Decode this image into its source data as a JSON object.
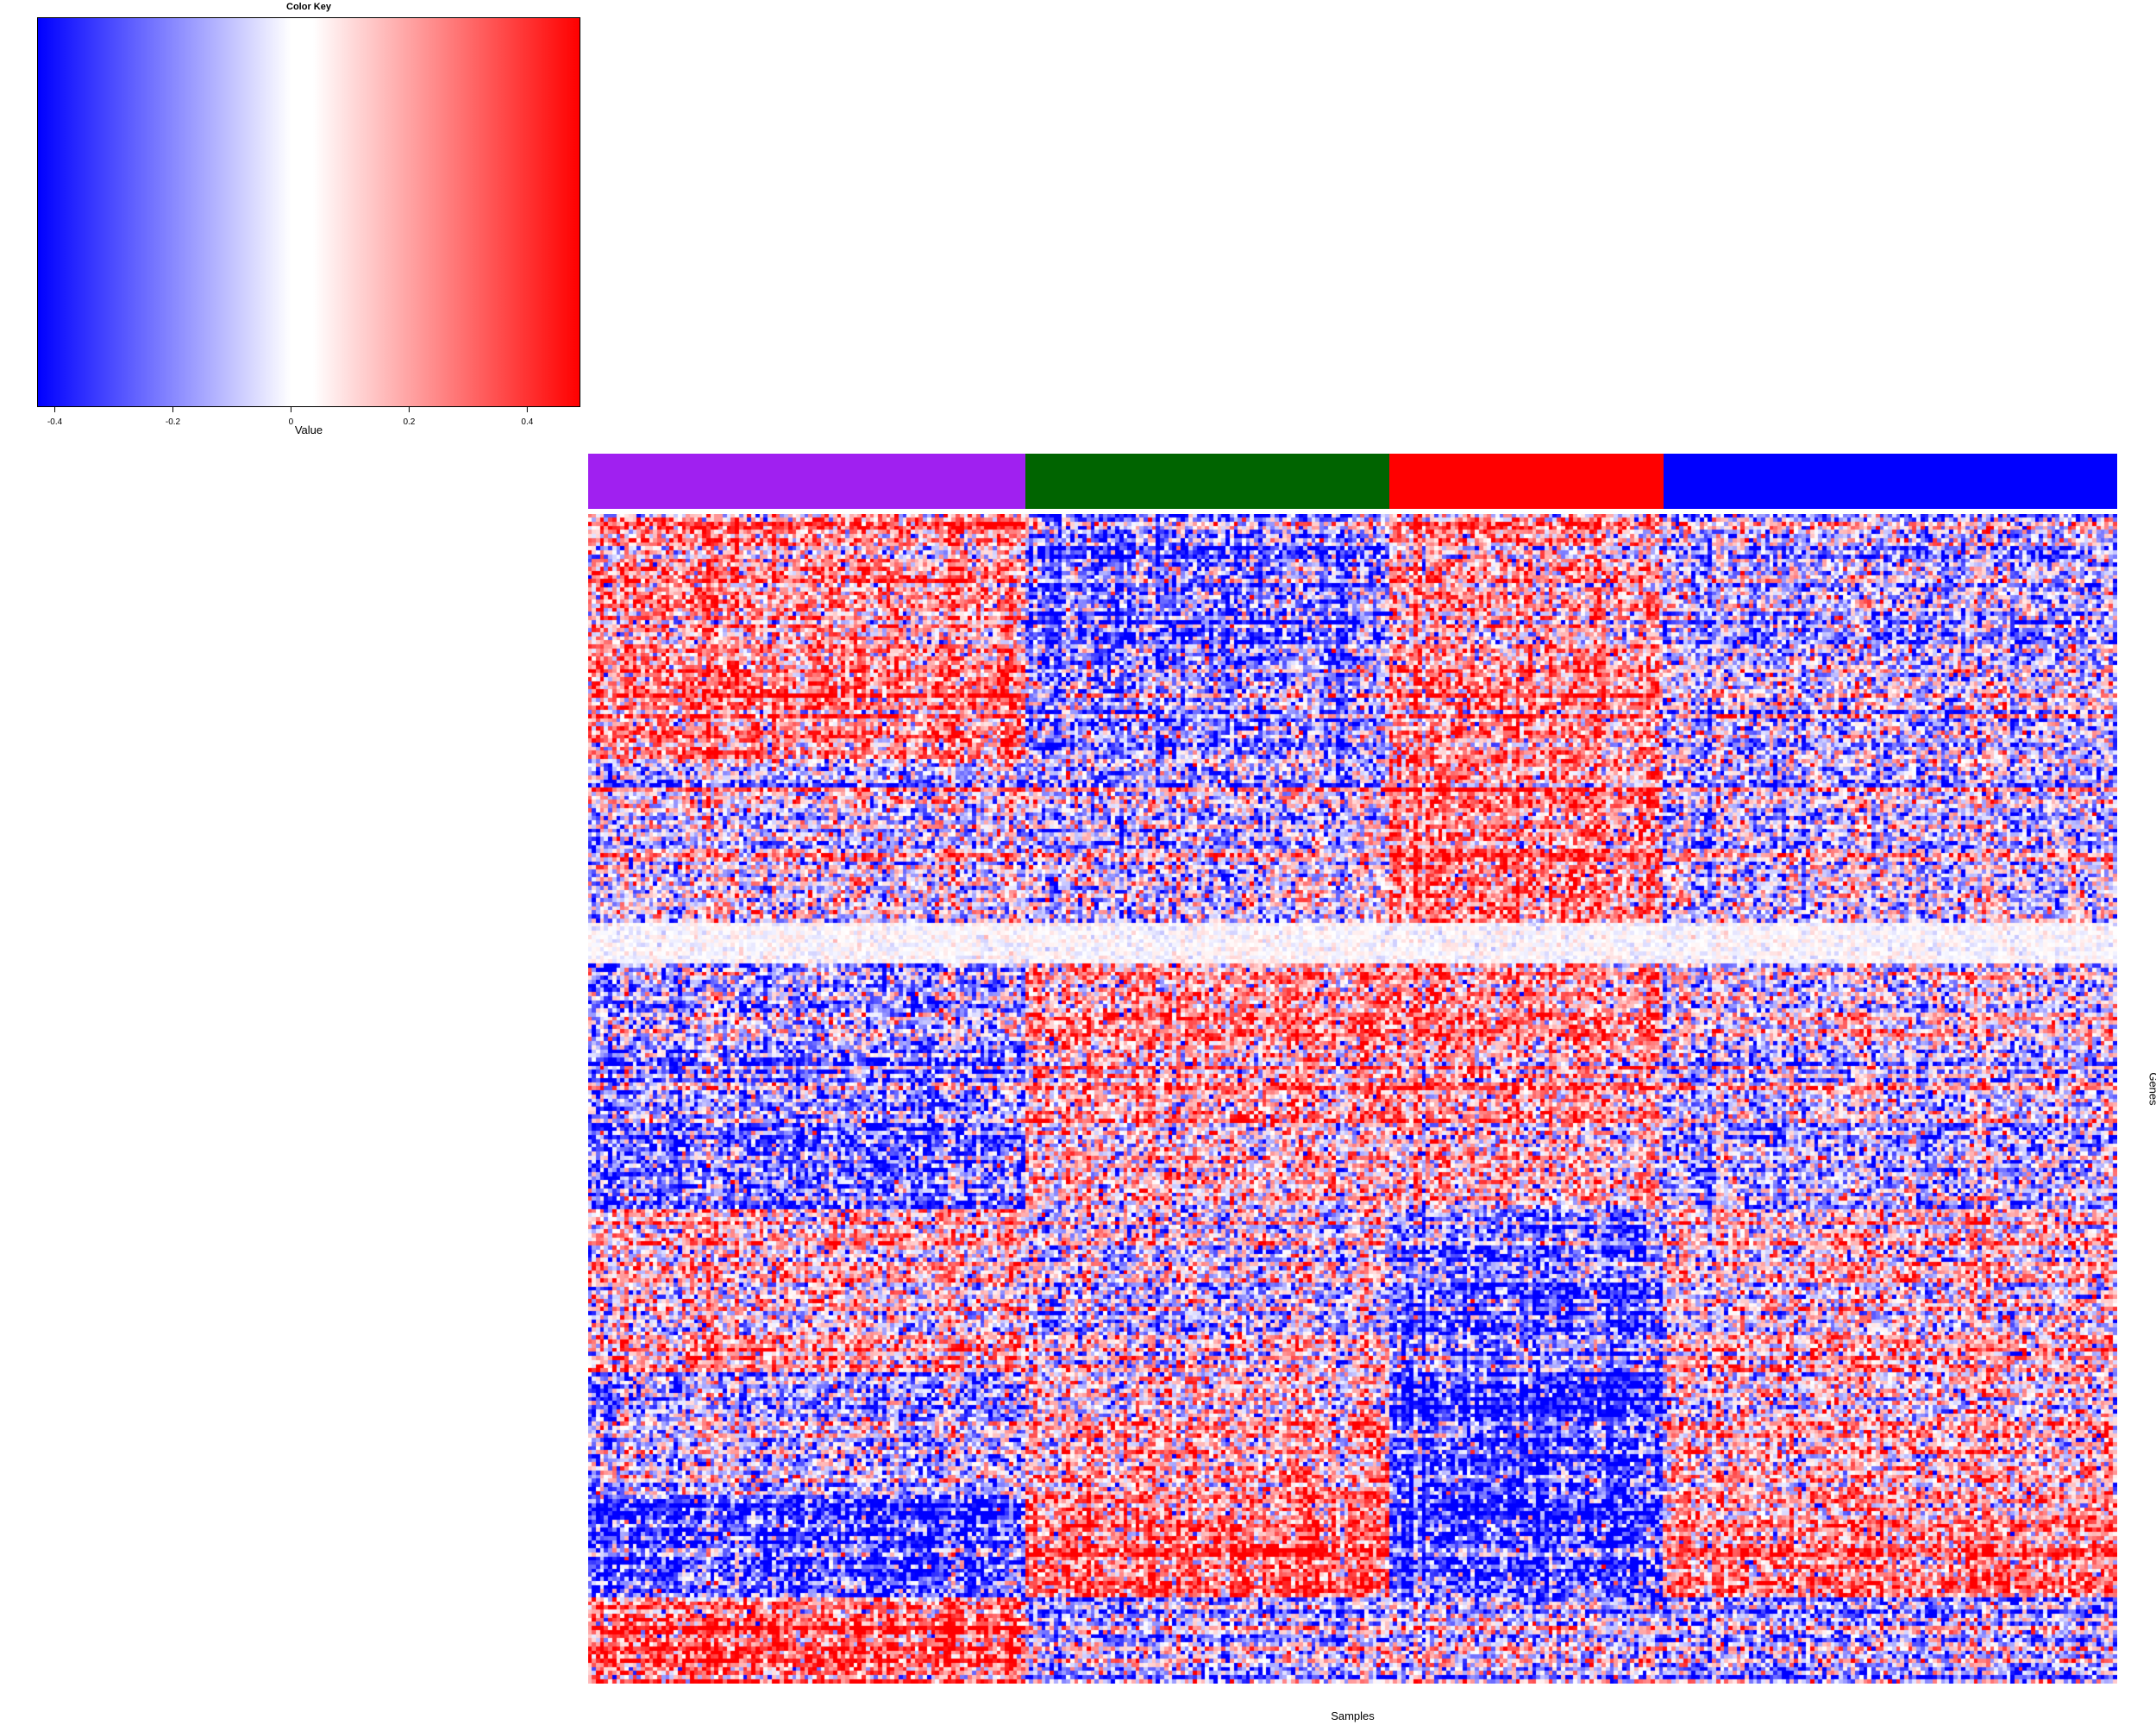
{
  "chart_data": {
    "type": "heatmap",
    "color_key": {
      "title": "Color Key",
      "xlabel": "Value",
      "range": [
        -0.43,
        0.49
      ],
      "ticks": [
        -0.4,
        -0.2,
        0,
        0.2,
        0.4
      ],
      "tick_labels": [
        "-0.4",
        "-0.2",
        "0",
        "0.2",
        "0.4"
      ],
      "low_color": "#0000ff",
      "mid_color": "#ffffff",
      "high_color": "#ff0000"
    },
    "xlabel": "Samples",
    "ylabel": "Genes",
    "sample_groups": [
      {
        "color": "#a020f0",
        "count": 107
      },
      {
        "color": "#006400",
        "count": 89
      },
      {
        "color": "#ff0000",
        "count": 67
      },
      {
        "color": "#0000ff",
        "count": 111
      }
    ],
    "num_samples": 374,
    "num_genes": 286,
    "gene_blocks": [
      {
        "rows": 60,
        "means": [
          0.22,
          -0.18,
          0.2,
          -0.05
        ]
      },
      {
        "rows": 40,
        "means": [
          -0.05,
          -0.08,
          0.22,
          -0.05
        ]
      },
      {
        "rows": 10,
        "means": [
          0.0,
          0.0,
          0.0,
          0.0
        ]
      },
      {
        "rows": 60,
        "means": [
          -0.2,
          0.12,
          0.15,
          -0.05
        ]
      },
      {
        "rows": 40,
        "means": [
          0.05,
          -0.05,
          -0.25,
          0.05
        ]
      },
      {
        "rows": 30,
        "means": [
          -0.1,
          0.12,
          -0.3,
          0.1
        ]
      },
      {
        "rows": 25,
        "means": [
          -0.3,
          0.3,
          -0.3,
          0.25
        ]
      },
      {
        "rows": 21,
        "means": [
          0.3,
          -0.1,
          -0.05,
          -0.1
        ]
      }
    ],
    "grid": false,
    "legend": "top-left"
  }
}
